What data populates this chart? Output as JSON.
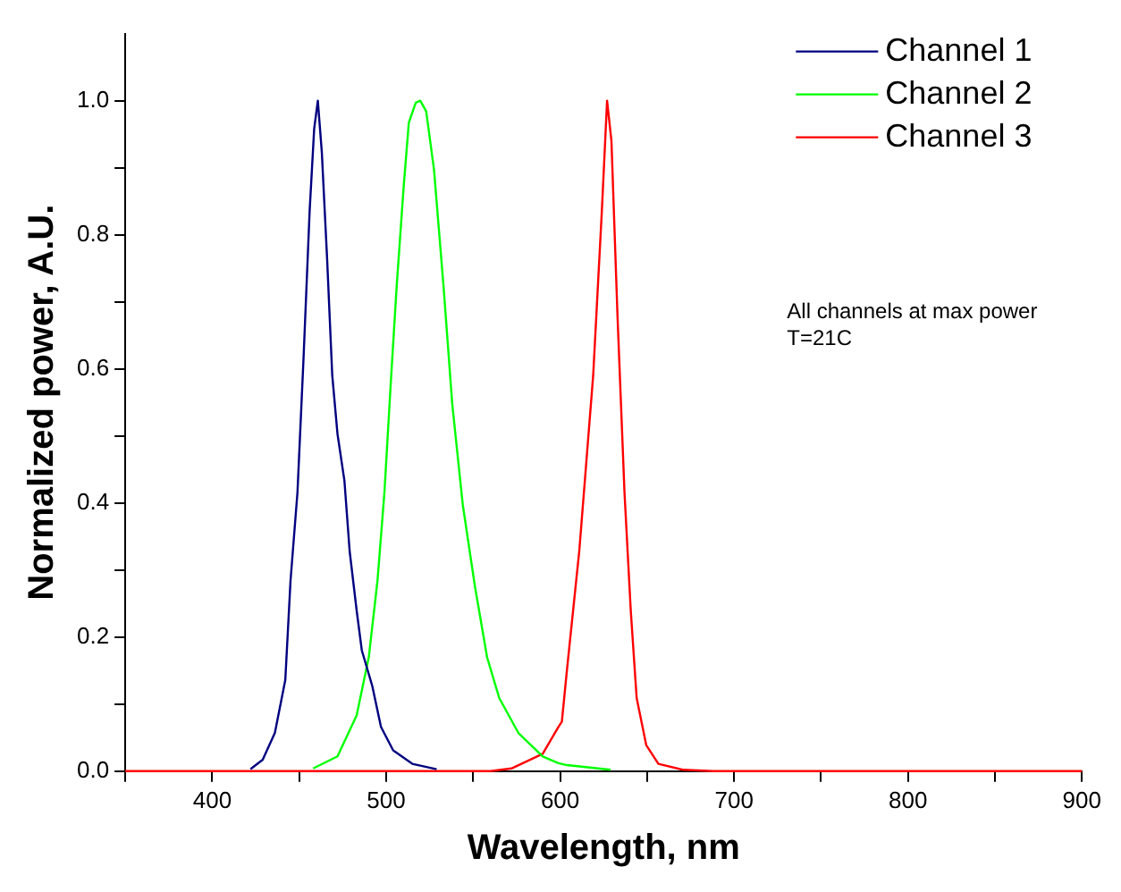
{
  "chart_data": {
    "type": "line",
    "xlabel": "Wavelength, nm",
    "ylabel": "Normalized power, A.U.",
    "xlim": [
      350,
      900
    ],
    "ylim": [
      0,
      1.1
    ],
    "xticks": [
      {
        "value": 350,
        "label": null
      },
      400,
      {
        "value": 450,
        "label": null
      },
      500,
      {
        "value": 550,
        "label": null
      },
      600,
      {
        "value": 650,
        "label": null
      },
      700,
      {
        "value": 750,
        "label": null
      },
      800,
      {
        "value": 850,
        "label": null
      },
      900
    ],
    "yticks": [
      "0.0",
      {
        "value": 0.1,
        "label": null
      },
      {
        "value": 0.2,
        "label": "0.2"
      },
      {
        "value": 0.3,
        "label": null
      },
      {
        "value": 0.4,
        "label": "0.4"
      },
      {
        "value": 0.5,
        "label": null
      },
      {
        "value": 0.6,
        "label": "0.6"
      },
      {
        "value": 0.7,
        "label": null
      },
      {
        "value": 0.8,
        "label": "0.8"
      },
      {
        "value": 0.9,
        "label": null
      },
      {
        "value": 1.0,
        "label": "1.0"
      }
    ],
    "grid": false,
    "legend": "top right",
    "marker": "none",
    "line_style": "solid",
    "annotations": [
      "All channels at max power",
      "T=21C"
    ],
    "series": [
      {
        "name": "Channel 1",
        "color": "#000080",
        "x": [
          422,
          429,
          436,
          442,
          445,
          449,
          452.5,
          456,
          458.6,
          460.7,
          463,
          466,
          469,
          472,
          476,
          479,
          483,
          486,
          492,
          497,
          504,
          515,
          529
        ],
        "values": [
          0.003,
          0.017,
          0.057,
          0.136,
          0.284,
          0.416,
          0.617,
          0.836,
          0.958,
          1.0,
          0.923,
          0.766,
          0.59,
          0.503,
          0.433,
          0.328,
          0.24,
          0.18,
          0.127,
          0.066,
          0.031,
          0.011,
          0.003
        ]
      },
      {
        "name": "Channel 2",
        "color": "#00ff00",
        "x": [
          458,
          472,
          483,
          490,
          495,
          499,
          502.5,
          506,
          510,
          513,
          517,
          519.6,
          523,
          527.5,
          533,
          538,
          544,
          551,
          558,
          565,
          576,
          590,
          599,
          604,
          629
        ],
        "values": [
          0.004,
          0.022,
          0.083,
          0.17,
          0.284,
          0.416,
          0.573,
          0.722,
          0.87,
          0.967,
          0.997,
          1.0,
          0.984,
          0.897,
          0.722,
          0.547,
          0.398,
          0.276,
          0.17,
          0.109,
          0.057,
          0.022,
          0.012,
          0.009,
          0.002
        ]
      },
      {
        "name": "Channel 3",
        "color": "#ff0000",
        "x": [
          350,
          560,
          572,
          590,
          599,
          601,
          604,
          611,
          619,
          624,
          627,
          629.5,
          633,
          637,
          640.6,
          644,
          649.5,
          656.5,
          670.7,
          688,
          900
        ],
        "values": [
          0,
          0,
          0.004,
          0.026,
          0.066,
          0.074,
          0.153,
          0.328,
          0.59,
          0.836,
          1.0,
          0.94,
          0.678,
          0.416,
          0.24,
          0.109,
          0.039,
          0.011,
          0.002,
          0,
          0
        ]
      }
    ]
  }
}
